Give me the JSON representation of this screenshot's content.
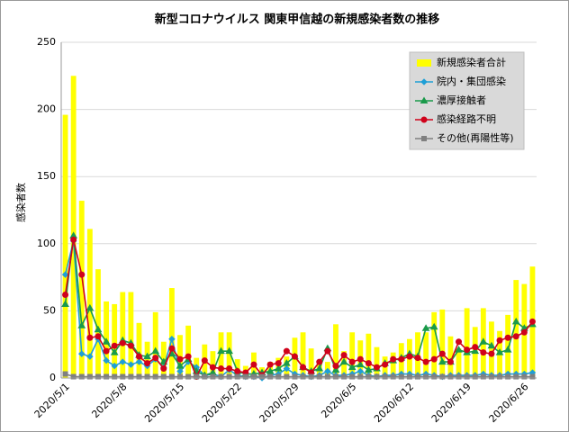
{
  "chart_data": {
    "type": "bar",
    "title": "新型コロナウイルス 関東甲信越の新規感染者数の推移",
    "y_label": "感染者数",
    "categories": [
      "2020/5/1",
      null,
      null,
      null,
      null,
      null,
      null,
      "2020/5/8",
      null,
      null,
      null,
      null,
      null,
      null,
      "2020/5/15",
      null,
      null,
      null,
      null,
      null,
      null,
      "2020/5/22",
      null,
      null,
      null,
      null,
      null,
      null,
      "2020/5/29",
      null,
      null,
      null,
      null,
      null,
      null,
      "2020/6/5",
      null,
      null,
      null,
      null,
      null,
      null,
      "2020/6/12",
      null,
      null,
      null,
      null,
      null,
      null,
      "2020/6/19",
      null,
      null,
      null,
      null,
      null,
      null,
      "2020/6/26",
      null
    ],
    "series": [
      {
        "name": "新規感染者合計",
        "type": "bar",
        "color": "#ffff00",
        "values": [
          196,
          225,
          132,
          111,
          81,
          57,
          55,
          64,
          64,
          41,
          27,
          49,
          27,
          67,
          32,
          39,
          15,
          25,
          20,
          34,
          34,
          14,
          9,
          19,
          8,
          12,
          15,
          16,
          30,
          34,
          22,
          13,
          12,
          40,
          20,
          34,
          28,
          33,
          23,
          16,
          19,
          26,
          29,
          34,
          34,
          49,
          51,
          31,
          22,
          52,
          38,
          52,
          42,
          35,
          47,
          73,
          70,
          83
        ]
      },
      {
        "name": "院内・集団感染",
        "type": "line",
        "marker": "diamond",
        "color": "#1f9fd6",
        "values": [
          77,
          102,
          18,
          16,
          29,
          13,
          9,
          12,
          10,
          12,
          9,
          14,
          8,
          29,
          5,
          12,
          8,
          2,
          3,
          1,
          6,
          2,
          1,
          1,
          0,
          2,
          3,
          7,
          3,
          2,
          1,
          2,
          5,
          2,
          2,
          3,
          5,
          2,
          1,
          2,
          2,
          3,
          3,
          2,
          3,
          2,
          1,
          2,
          2,
          2,
          2,
          3,
          2,
          2,
          3,
          3,
          3,
          4
        ]
      },
      {
        "name": "濃厚接触者",
        "type": "line",
        "marker": "triangle",
        "color": "#1a9a4a",
        "values": [
          55,
          106,
          39,
          52,
          36,
          27,
          19,
          28,
          26,
          17,
          16,
          20,
          12,
          18,
          9,
          14,
          5,
          2,
          4,
          20,
          20,
          5,
          3,
          3,
          4,
          5,
          7,
          11,
          16,
          8,
          5,
          7,
          22,
          6,
          12,
          8,
          10,
          6,
          7,
          11,
          13,
          15,
          18,
          16,
          37,
          38,
          12,
          12,
          21,
          19,
          20,
          27,
          24,
          19,
          21,
          42,
          37,
          40
        ]
      },
      {
        "name": "感染経路不明",
        "type": "line",
        "marker": "circle",
        "color": "#d0021b",
        "values": [
          62,
          103,
          77,
          30,
          31,
          20,
          24,
          26,
          24,
          16,
          11,
          15,
          7,
          22,
          14,
          16,
          1,
          13,
          8,
          7,
          7,
          5,
          4,
          10,
          2,
          10,
          11,
          20,
          16,
          8,
          4,
          12,
          20,
          9,
          17,
          12,
          14,
          11,
          8,
          10,
          14,
          14,
          16,
          15,
          12,
          14,
          18,
          12,
          27,
          21,
          23,
          19,
          18,
          28,
          30,
          31,
          34,
          42
        ]
      },
      {
        "name": "その他(再陽性等)",
        "type": "line",
        "marker": "square",
        "color": "#808080",
        "values": [
          3,
          1,
          1,
          1,
          1,
          1,
          1,
          1,
          1,
          1,
          1,
          1,
          1,
          1,
          1,
          1,
          1,
          1,
          1,
          1,
          1,
          1,
          1,
          1,
          1,
          1,
          1,
          1,
          1,
          1,
          1,
          1,
          1,
          1,
          1,
          1,
          1,
          1,
          1,
          1,
          1,
          1,
          1,
          1,
          1,
          1,
          1,
          1,
          1,
          1,
          1,
          1,
          1,
          1,
          1,
          1,
          1,
          1
        ]
      }
    ],
    "ylim": [
      0,
      250
    ],
    "yticks": [
      0,
      50,
      100,
      150,
      200,
      250
    ],
    "grid": true,
    "legend": "upper right"
  }
}
